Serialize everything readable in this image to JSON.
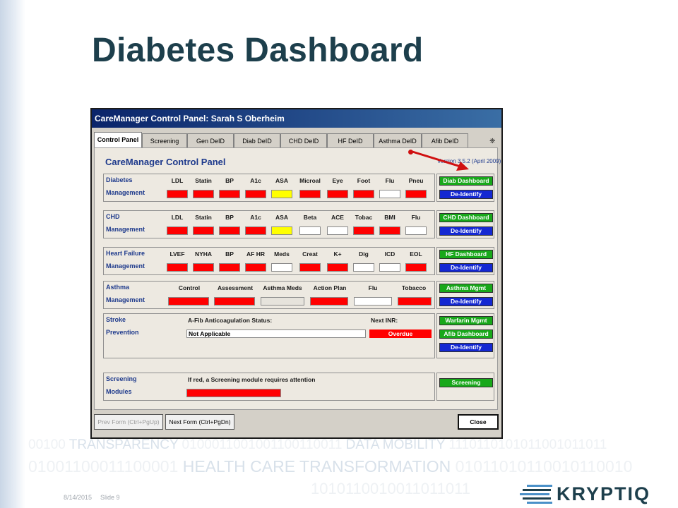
{
  "slide": {
    "title": "Diabetes Dashboard",
    "footer_date": "8/14/2015",
    "footer_slide": "Slide 9",
    "logo_text": "KRYPTIQ",
    "background_lines": [
      {
        "pre": "00100 ",
        "hl": "TRANSPARENCY",
        "post": " 0100011001001100110011 ",
        "hl2": "DATA MOBILITY",
        "post2": " 1110110101011001011011"
      },
      {
        "pre": "01001100011100001 ",
        "hl": "HEALTH CARE TRANSFORMATION",
        "post": " 01011010110010110010",
        "hl2": "",
        "post2": ""
      },
      {
        "pre": "1010110010011011011",
        "hl": "",
        "post": "",
        "hl2": "",
        "post2": ""
      }
    ]
  },
  "window": {
    "title": "CareManager Control Panel:  Sarah S Oberheim",
    "tabs": [
      "Control Panel",
      "Screening",
      "Gen DeID",
      "Diab DeID",
      "CHD DeID",
      "HF DeID",
      "Asthma DeID",
      "Afib DeID"
    ],
    "active_tab": "Control Panel",
    "tab_scroll_icon": "❈",
    "panel_title": "CareManager Control Panel",
    "version": "Version 3.5.2  (April 2009)",
    "groups": {
      "diabetes": {
        "label1": "Diabetes",
        "label2": "Management",
        "columns": [
          "LDL",
          "Statin",
          "BP",
          "A1c",
          "ASA",
          "Microal",
          "Eye",
          "Foot",
          "Flu",
          "Pneu"
        ],
        "status": [
          "red",
          "red",
          "red",
          "red",
          "yellow",
          "red",
          "red",
          "red",
          "white",
          "red"
        ],
        "buttons": [
          "Diab Dashboard",
          "De-Identify"
        ]
      },
      "chd": {
        "label1": "CHD",
        "label2": "Management",
        "columns": [
          "LDL",
          "Statin",
          "BP",
          "A1c",
          "ASA",
          "Beta",
          "ACE",
          "Tobac",
          "BMI",
          "Flu"
        ],
        "status": [
          "red",
          "red",
          "red",
          "red",
          "yellow",
          "white",
          "white",
          "red",
          "red",
          "white"
        ],
        "buttons": [
          "CHD Dashboard",
          "De-Identify"
        ]
      },
      "hf": {
        "label1": "Heart Failure",
        "label2": "Management",
        "columns": [
          "LVEF",
          "NYHA",
          "BP",
          "AF HR",
          "Meds",
          "Creat",
          "K+",
          "Dig",
          "ICD",
          "EOL"
        ],
        "status": [
          "red",
          "red",
          "red",
          "red",
          "white",
          "red",
          "red",
          "white",
          "white",
          "red"
        ],
        "buttons": [
          "HF Dashboard",
          "De-Identify"
        ]
      },
      "asthma": {
        "label1": "Asthma",
        "label2": "Management",
        "columns": [
          "Control",
          "Assessment",
          "Asthma Meds",
          "Action Plan",
          "Flu",
          "Tobacco"
        ],
        "status": [
          "red",
          "red",
          "grey",
          "red",
          "white",
          "red"
        ],
        "buttons": [
          "Asthma Mgmt",
          "De-Identify"
        ]
      },
      "stroke": {
        "label1": "Stroke",
        "label2": "Prevention",
        "status_label": "A-Fib Anticoagulation Status:",
        "status_value": "Not Applicable",
        "inr_label": "Next INR:",
        "inr_value": "Overdue",
        "buttons": [
          "Warfarin Mgmt",
          "Afib Dashboard",
          "De-Identify"
        ]
      },
      "screening": {
        "label1": "Screening",
        "label2": "Modules",
        "note": "If red, a Screening module requires attention",
        "status": "red",
        "buttons": [
          "Screening"
        ]
      }
    },
    "nav": {
      "prev": "Prev Form (Ctrl+PgUp)",
      "next": "Next Form (Ctrl+PgDn)",
      "close": "Close"
    }
  },
  "colors": {
    "red": "#ff0000",
    "yellow": "#ffff00",
    "green_button": "#18a81a",
    "blue_button": "#1428d2",
    "title_text": "#1d3f4c",
    "panel_text": "#1e3a8c"
  }
}
